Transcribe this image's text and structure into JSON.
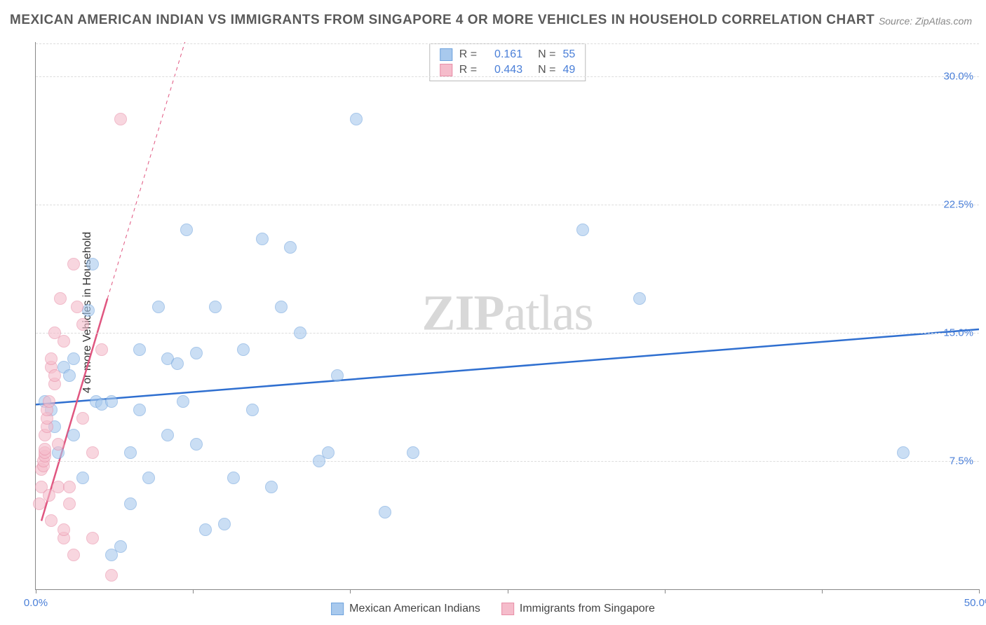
{
  "title": "MEXICAN AMERICAN INDIAN VS IMMIGRANTS FROM SINGAPORE 4 OR MORE VEHICLES IN HOUSEHOLD CORRELATION CHART",
  "source": "Source: ZipAtlas.com",
  "ylabel": "4 or more Vehicles in Household",
  "watermark_a": "ZIP",
  "watermark_b": "atlas",
  "chart": {
    "type": "scatter",
    "xlim": [
      0,
      50
    ],
    "ylim": [
      0,
      32
    ],
    "xticks": [
      0,
      8.33,
      16.67,
      25,
      33.33,
      41.67,
      50
    ],
    "xtick_labels": {
      "0": "0.0%",
      "50": "50.0%"
    },
    "yticks": [
      7.5,
      15.0,
      22.5,
      30.0
    ],
    "ytick_labels": [
      "7.5%",
      "15.0%",
      "22.5%",
      "30.0%"
    ],
    "grid_color": "#dddddd",
    "background_color": "#ffffff",
    "axis_color": "#888888",
    "tick_label_color": "#4a7fd8",
    "series": [
      {
        "name": "Mexican American Indians",
        "color_fill": "#a8c9ed",
        "color_stroke": "#6fa3dd",
        "marker_radius": 9,
        "fill_opacity": 0.6,
        "R": "0.161",
        "N": "55",
        "trend": {
          "x1": 0,
          "y1": 10.8,
          "x2": 50,
          "y2": 15.2,
          "color": "#2f6fd0",
          "width": 2.5,
          "dash_extend": false
        },
        "points": [
          [
            0.5,
            11
          ],
          [
            0.8,
            10.5
          ],
          [
            1,
            9.5
          ],
          [
            1.2,
            8
          ],
          [
            1.5,
            13
          ],
          [
            1.8,
            12.5
          ],
          [
            2,
            13.5
          ],
          [
            2,
            9
          ],
          [
            2.5,
            6.5
          ],
          [
            2.8,
            16.3
          ],
          [
            3,
            19
          ],
          [
            3.2,
            11
          ],
          [
            3.5,
            10.8
          ],
          [
            4,
            11
          ],
          [
            4,
            2
          ],
          [
            4.5,
            2.5
          ],
          [
            5,
            5
          ],
          [
            5,
            8
          ],
          [
            5.5,
            10.5
          ],
          [
            5.5,
            14
          ],
          [
            6,
            6.5
          ],
          [
            6.5,
            16.5
          ],
          [
            7,
            9
          ],
          [
            7,
            13.5
          ],
          [
            7.5,
            13.2
          ],
          [
            7.8,
            11
          ],
          [
            8,
            21
          ],
          [
            8.5,
            8.5
          ],
          [
            8.5,
            13.8
          ],
          [
            9,
            3.5
          ],
          [
            9.5,
            16.5
          ],
          [
            10,
            3.8
          ],
          [
            10.5,
            6.5
          ],
          [
            11,
            14
          ],
          [
            11.5,
            10.5
          ],
          [
            12,
            20.5
          ],
          [
            12.5,
            6
          ],
          [
            13,
            16.5
          ],
          [
            13.5,
            20
          ],
          [
            14,
            15
          ],
          [
            15,
            7.5
          ],
          [
            15.5,
            8
          ],
          [
            16,
            12.5
          ],
          [
            17,
            27.5
          ],
          [
            18.5,
            4.5
          ],
          [
            20,
            8
          ],
          [
            29,
            21
          ],
          [
            32,
            17
          ],
          [
            46,
            8
          ]
        ]
      },
      {
        "name": "Immigrants from Singapore",
        "color_fill": "#f5bccb",
        "color_stroke": "#e88fa8",
        "marker_radius": 9,
        "fill_opacity": 0.6,
        "R": "0.443",
        "N": "49",
        "trend": {
          "x1": 0.3,
          "y1": 4,
          "x2": 3.8,
          "y2": 17,
          "color": "#e05680",
          "width": 2.5,
          "dash_extend": true,
          "dash_x2": 9,
          "dash_y2": 36
        },
        "points": [
          [
            0.2,
            5
          ],
          [
            0.3,
            6
          ],
          [
            0.3,
            7
          ],
          [
            0.4,
            7.2
          ],
          [
            0.4,
            7.5
          ],
          [
            0.5,
            7.8
          ],
          [
            0.5,
            8
          ],
          [
            0.5,
            8.2
          ],
          [
            0.5,
            9
          ],
          [
            0.6,
            9.5
          ],
          [
            0.6,
            10
          ],
          [
            0.6,
            10.5
          ],
          [
            0.7,
            11
          ],
          [
            0.7,
            5.5
          ],
          [
            0.8,
            4
          ],
          [
            0.8,
            13
          ],
          [
            0.8,
            13.5
          ],
          [
            1,
            12
          ],
          [
            1,
            12.5
          ],
          [
            1,
            15
          ],
          [
            1.2,
            6
          ],
          [
            1.2,
            8.5
          ],
          [
            1.3,
            17
          ],
          [
            1.5,
            14.5
          ],
          [
            1.5,
            3
          ],
          [
            1.5,
            3.5
          ],
          [
            1.8,
            5
          ],
          [
            1.8,
            6
          ],
          [
            2,
            2
          ],
          [
            2,
            19
          ],
          [
            2.2,
            16.5
          ],
          [
            2.5,
            10
          ],
          [
            2.5,
            15.5
          ],
          [
            3,
            8
          ],
          [
            3,
            3
          ],
          [
            3.5,
            14
          ],
          [
            4,
            0.8
          ],
          [
            4.5,
            27.5
          ]
        ]
      }
    ]
  },
  "legend_top": {
    "label_R": "R =",
    "label_N": "N ="
  },
  "legend_bottom": [
    {
      "swatch_fill": "#a8c9ed",
      "swatch_stroke": "#6fa3dd",
      "label": "Mexican American Indians"
    },
    {
      "swatch_fill": "#f5bccb",
      "swatch_stroke": "#e88fa8",
      "label": "Immigrants from Singapore"
    }
  ]
}
